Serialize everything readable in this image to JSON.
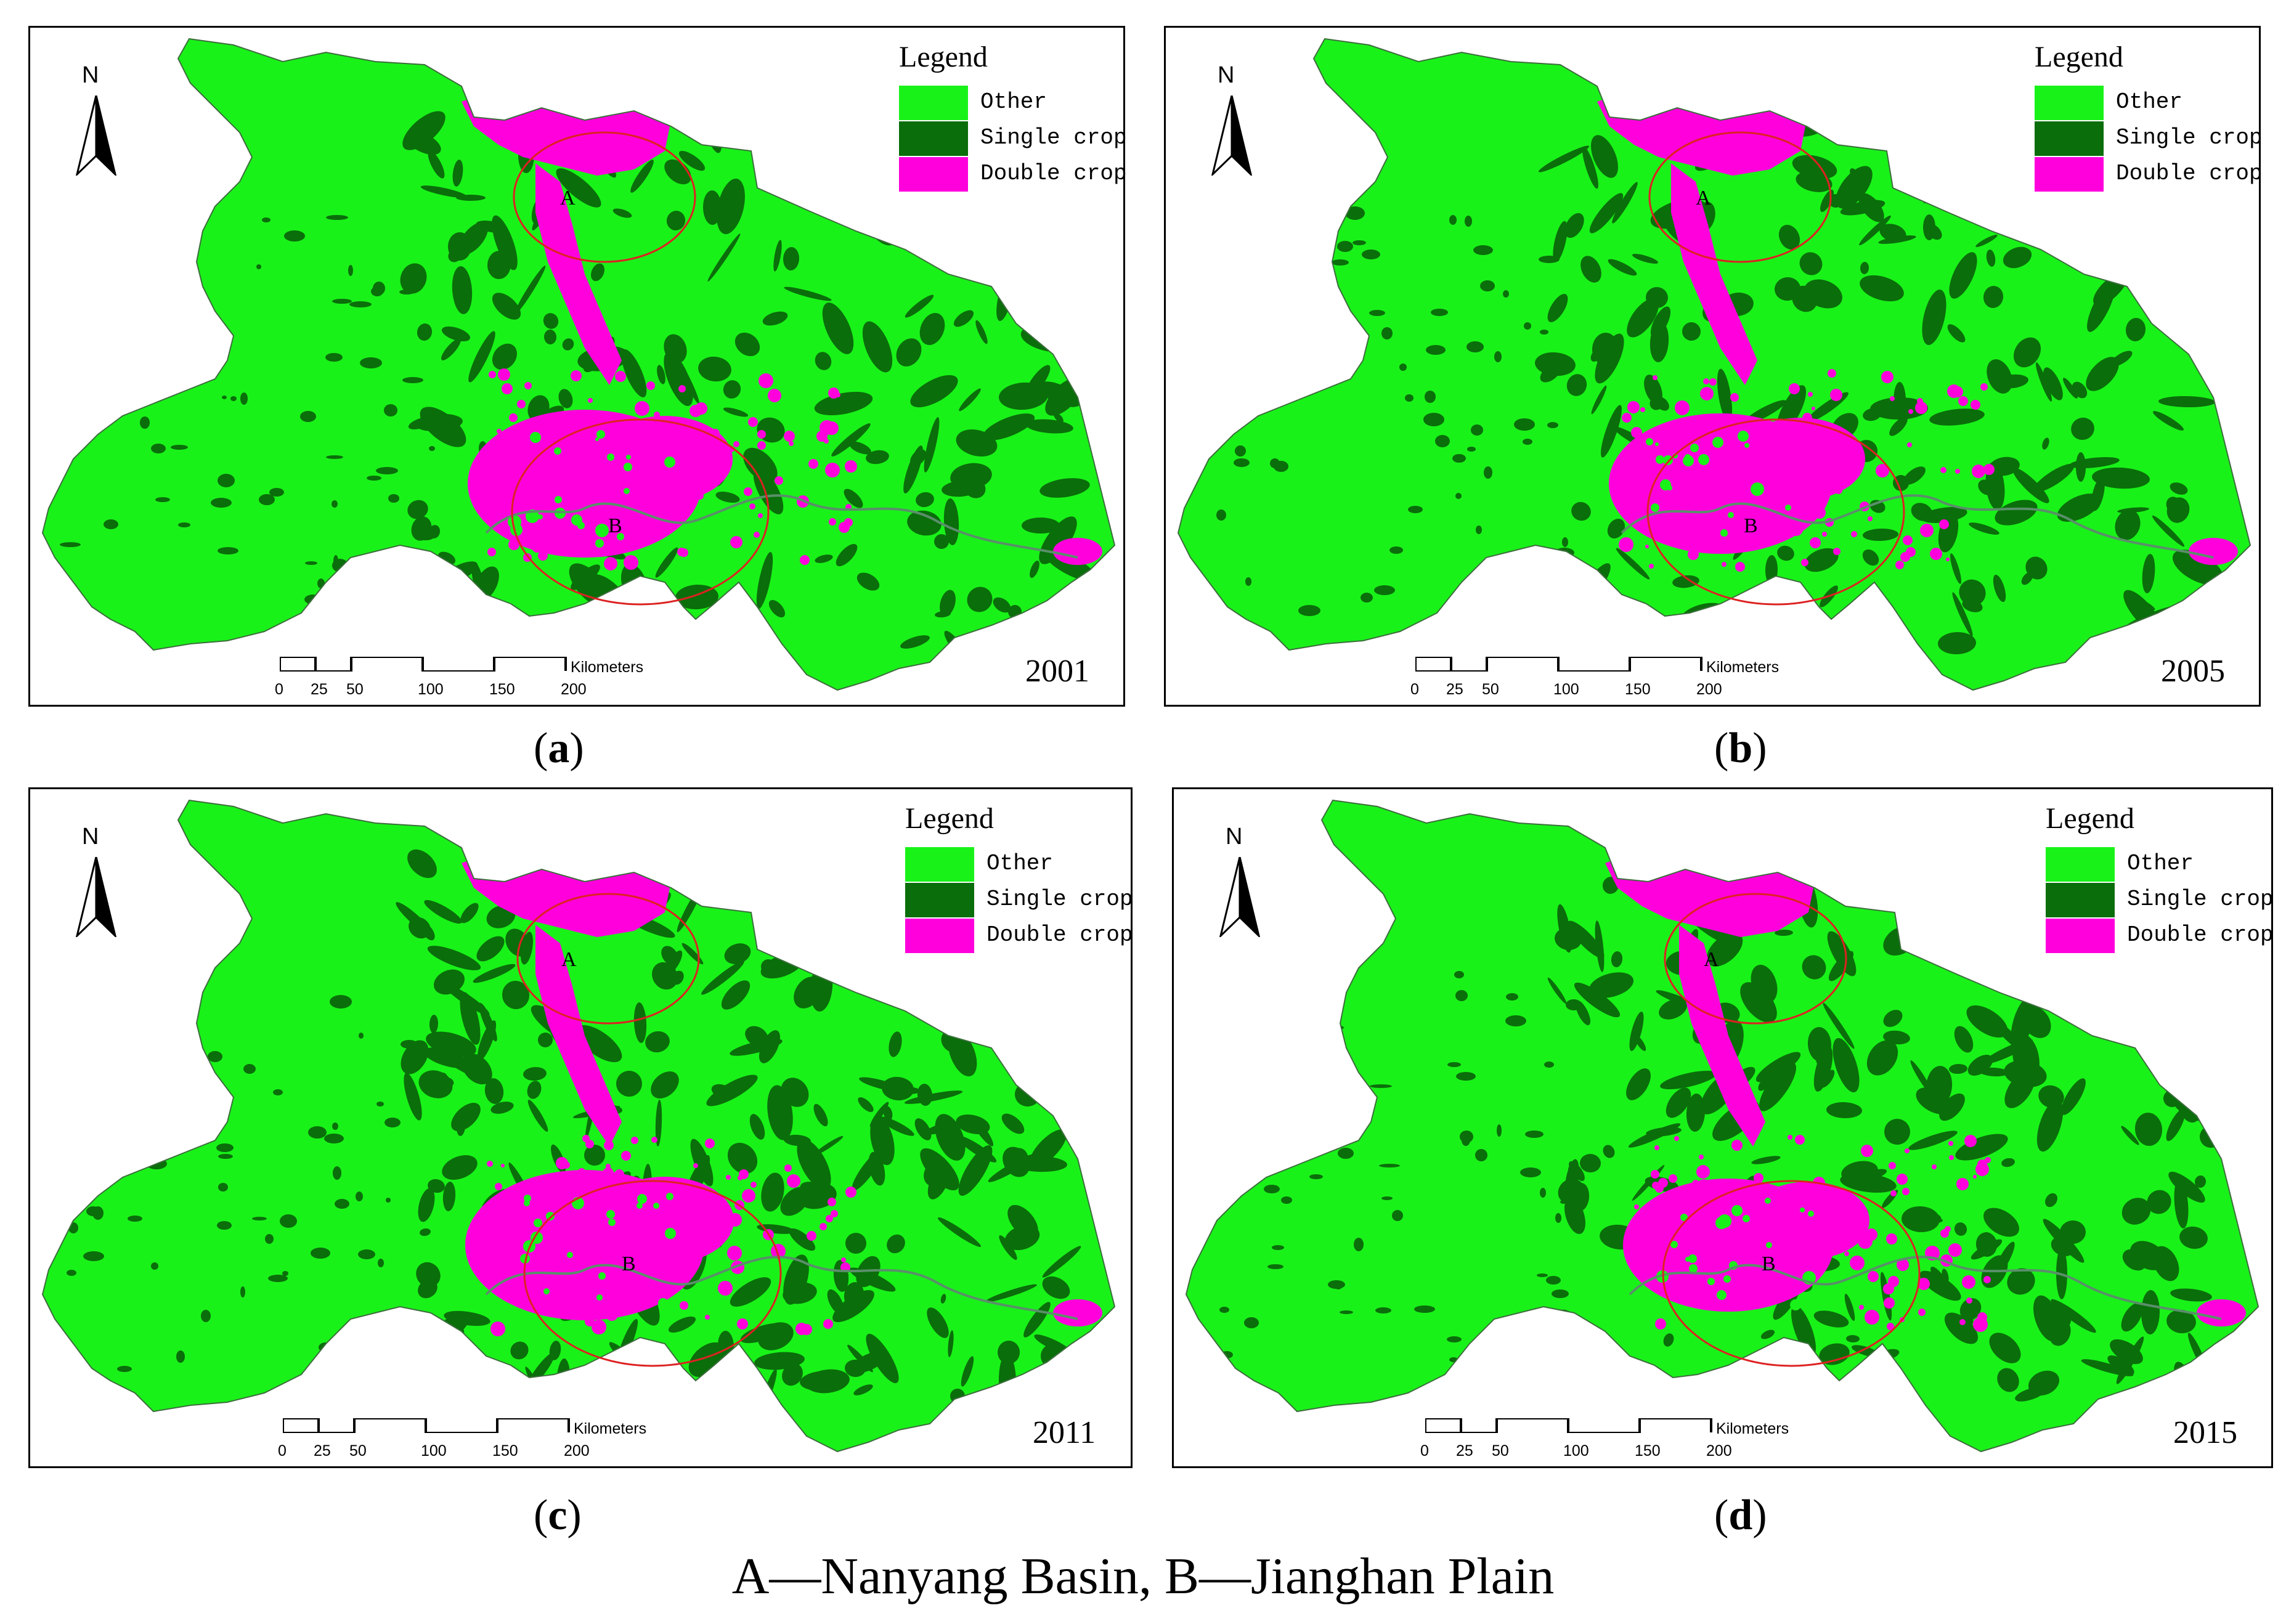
{
  "legend": {
    "title": "Legend",
    "items": [
      {
        "label": "Other",
        "color": "#19f219"
      },
      {
        "label": "Single crop",
        "color": "#0a6e0a"
      },
      {
        "label": "Double crop",
        "color": "#ff00dd"
      }
    ]
  },
  "north_label": "N",
  "scale": {
    "unit": "Kilometers",
    "ticks": [
      "0",
      "25",
      "50",
      "100",
      "150",
      "200"
    ]
  },
  "region_labels": {
    "a": "A",
    "b": "B"
  },
  "panels": [
    {
      "year": "2001",
      "caption_open": "(",
      "caption_letter": "a",
      "caption_close": ")"
    },
    {
      "year": "2005",
      "caption_open": "(",
      "caption_letter": "b",
      "caption_close": ")"
    },
    {
      "year": "2011",
      "caption_open": "(",
      "caption_letter": "c",
      "caption_close": ")"
    },
    {
      "year": "2015",
      "caption_open": "(",
      "caption_letter": "d",
      "caption_close": ")"
    }
  ],
  "footer": "A—Nanyang Basin, B—Jianghan Plain",
  "colors": {
    "other": "#19f219",
    "single": "#0a6e0a",
    "double": "#ff00dd",
    "circle": "#dd2222"
  }
}
